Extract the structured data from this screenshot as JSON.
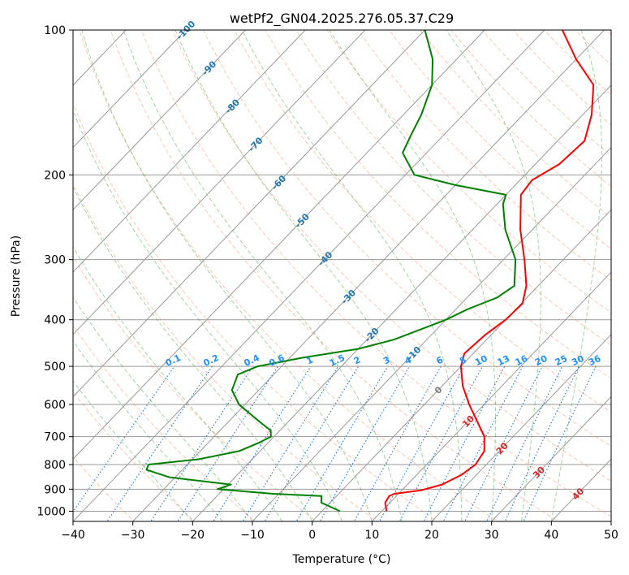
{
  "chart_data": {
    "type": "line",
    "title": "wetPf2_GN04.2025.276.05.37.C29",
    "xlabel": "Temperature (°C)",
    "ylabel": "Pressure (hPa)",
    "xlim": [
      -40,
      50
    ],
    "ylim": [
      1050,
      100
    ],
    "y_scale": "log",
    "x_ticks": [
      -40,
      -30,
      -20,
      -10,
      0,
      10,
      20,
      30,
      40,
      50
    ],
    "y_ticks": [
      100,
      200,
      300,
      400,
      500,
      600,
      700,
      800,
      900,
      1000
    ],
    "grid": true,
    "colors": {
      "temperature": "#ff0000",
      "dewpoint": "#008000",
      "isotherm": "#999999",
      "dry_adiabat": "#ff7f50",
      "moist_adiabat": "#2ca02c",
      "mixing_ratio": "#1f77d4",
      "isotherm_label": "#1f77b4",
      "zero_isotherm_label": "#808080",
      "warm_isotherm_label": "#d62728",
      "mixing_label": "#1e90ff"
    },
    "isotherm_labels": [
      "-100",
      "-90",
      "-80",
      "-70",
      "-60",
      "-50",
      "-40",
      "-30",
      "-20",
      "-10",
      "0",
      "10",
      "20",
      "30",
      "40"
    ],
    "mixing_ratio_labels": [
      "0.1",
      "0.2",
      "0.4",
      "0.6",
      "1",
      "1.5",
      "2",
      "3",
      "4",
      "6",
      "8",
      "10",
      "13",
      "16",
      "20",
      "25",
      "30",
      "36"
    ],
    "series": [
      {
        "key": "temperature",
        "points": [
          [
            1000,
            10.8
          ],
          [
            960,
            9.2
          ],
          [
            930,
            8.8
          ],
          [
            920,
            9.3
          ],
          [
            905,
            13.2
          ],
          [
            880,
            15.8
          ],
          [
            840,
            17.5
          ],
          [
            800,
            18.2
          ],
          [
            750,
            17.5
          ],
          [
            700,
            15.2
          ],
          [
            650,
            11.5
          ],
          [
            600,
            7.5
          ],
          [
            550,
            3.5
          ],
          [
            500,
            0.0
          ],
          [
            470,
            -1.5
          ],
          [
            430,
            -1.0
          ],
          [
            400,
            0.0
          ],
          [
            370,
            0.2
          ],
          [
            340,
            -2.0
          ],
          [
            300,
            -6.5
          ],
          [
            260,
            -12.0
          ],
          [
            220,
            -17.5
          ],
          [
            205,
            -18.0
          ],
          [
            190,
            -16.0
          ],
          [
            170,
            -15.5
          ],
          [
            150,
            -18.5
          ],
          [
            130,
            -23.0
          ],
          [
            115,
            -30.0
          ],
          [
            100,
            -37.0
          ]
        ]
      },
      {
        "key": "dewpoint",
        "points": [
          [
            1000,
            3.0
          ],
          [
            960,
            -1.5
          ],
          [
            930,
            -2.5
          ],
          [
            920,
            -11.0
          ],
          [
            900,
            -21.0
          ],
          [
            880,
            -19.5
          ],
          [
            850,
            -31.0
          ],
          [
            820,
            -36.0
          ],
          [
            800,
            -36.5
          ],
          [
            780,
            -29.0
          ],
          [
            750,
            -23.5
          ],
          [
            720,
            -21.5
          ],
          [
            700,
            -20.5
          ],
          [
            680,
            -21.5
          ],
          [
            650,
            -25.0
          ],
          [
            600,
            -31.0
          ],
          [
            560,
            -34.5
          ],
          [
            520,
            -36.0
          ],
          [
            500,
            -34.0
          ],
          [
            480,
            -28.0
          ],
          [
            460,
            -20.0
          ],
          [
            440,
            -15.5
          ],
          [
            400,
            -10.0
          ],
          [
            380,
            -8.0
          ],
          [
            360,
            -5.0
          ],
          [
            340,
            -4.0
          ],
          [
            300,
            -8.0
          ],
          [
            260,
            -14.5
          ],
          [
            230,
            -19.0
          ],
          [
            220,
            -20.0
          ],
          [
            210,
            -30.0
          ],
          [
            200,
            -38.5
          ],
          [
            180,
            -44.0
          ],
          [
            165,
            -45.5
          ],
          [
            150,
            -47.0
          ],
          [
            130,
            -50.0
          ],
          [
            115,
            -54.0
          ],
          [
            100,
            -60.0
          ]
        ]
      }
    ]
  }
}
